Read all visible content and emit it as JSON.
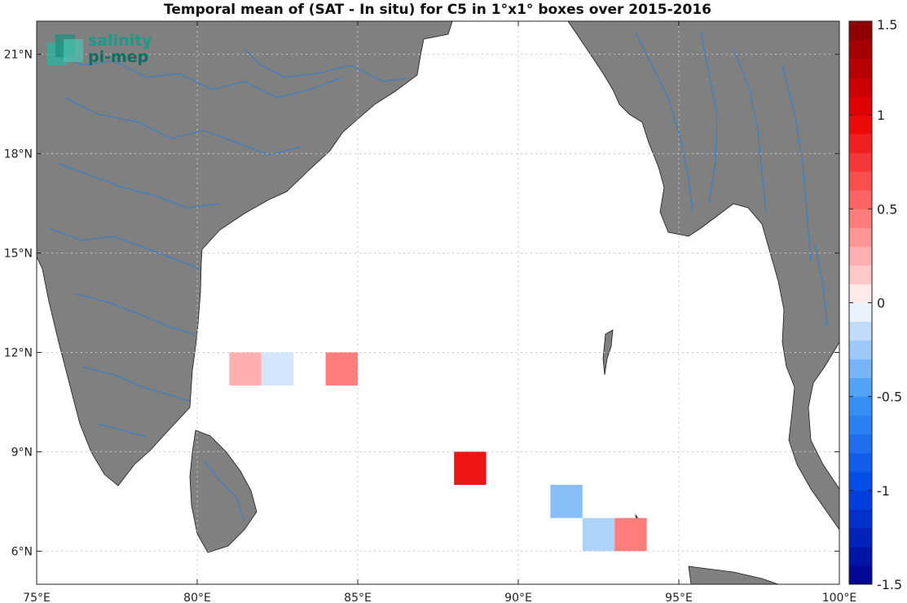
{
  "title": "Temporal mean of (SAT - In situ) for C5 in 1°x1° boxes over 2015-2016",
  "logo": {
    "line1": "salinity",
    "line2": "pi-mep"
  },
  "colors": {
    "land": "#808080",
    "land_border": "#1a1a1a",
    "rivers": "#2f7fd0",
    "grid": "#c8c8c8",
    "ocean": "#ffffff"
  },
  "map": {
    "lon_range": [
      75,
      100
    ],
    "lat_range": [
      5,
      22
    ],
    "lon_ticks": [
      75,
      80,
      85,
      90,
      95,
      100
    ],
    "lat_ticks": [
      6,
      9,
      12,
      15,
      18,
      21
    ],
    "lon_tick_labels": [
      "75°E",
      "80°E",
      "85°E",
      "90°E",
      "95°E",
      "100°E"
    ],
    "lat_tick_labels": [
      "6°N",
      "9°N",
      "12°N",
      "15°N",
      "18°N",
      "21°N"
    ]
  },
  "chart_data": {
    "type": "heatmap",
    "title": "Temporal mean of (SAT - In situ) for C5 in 1°x1° boxes over 2015-2016",
    "xlabel": "",
    "ylabel": "",
    "x_unit": "°E",
    "y_unit": "°N",
    "xlim": [
      75,
      100
    ],
    "ylim": [
      5,
      22
    ],
    "grid": true,
    "colorbar": {
      "range": [
        -1.5,
        1.5
      ],
      "step": 0.1,
      "ticks": [
        1.5,
        1,
        0.5,
        0,
        -0.5,
        -1,
        -1.5
      ],
      "tick_labels": [
        "1.5",
        "1",
        "0.5",
        "0",
        "-0.5",
        "-1",
        "-1.5"
      ]
    },
    "cells": [
      {
        "lon": 81,
        "lat": 11,
        "value": 0.25
      },
      {
        "lon": 82,
        "lat": 11,
        "value": -0.1
      },
      {
        "lon": 84,
        "lat": 11,
        "value": 0.45
      },
      {
        "lon": 88,
        "lat": 8,
        "value": 0.9
      },
      {
        "lon": 91,
        "lat": 7,
        "value": -0.3
      },
      {
        "lon": 92,
        "lat": 6,
        "value": -0.2
      },
      {
        "lon": 93,
        "lat": 6,
        "value": 0.45
      }
    ]
  }
}
